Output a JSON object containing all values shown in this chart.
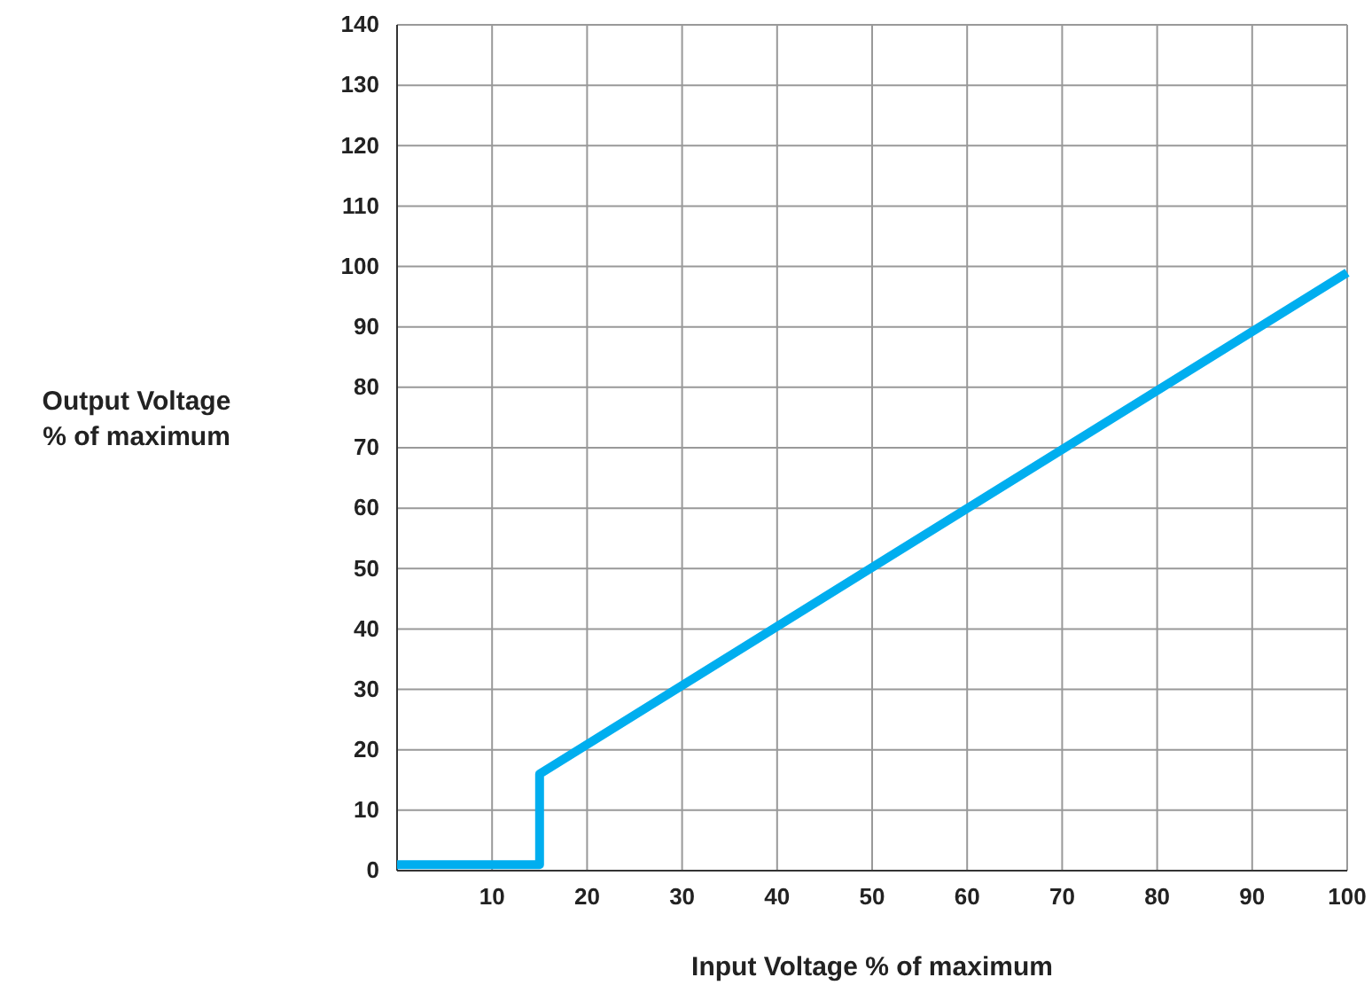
{
  "chart_data": {
    "type": "line",
    "xlabel": "Input Voltage % of maximum",
    "ylabel": "Output Voltage % of maximum",
    "x": [
      0,
      15,
      15,
      100
    ],
    "series": [
      {
        "color": "#00aeef",
        "values": [
          1,
          1,
          16,
          99
        ]
      }
    ],
    "xlim": [
      0,
      100
    ],
    "xticks": [
      10,
      20,
      30,
      40,
      50,
      60,
      70,
      80,
      90,
      100
    ],
    "ylim": [
      0,
      140
    ],
    "yticks": [
      0,
      10,
      20,
      30,
      40,
      50,
      60,
      70,
      80,
      90,
      100,
      110,
      120,
      130,
      140
    ],
    "grid": true,
    "marker": "none",
    "line_style": "solid"
  }
}
